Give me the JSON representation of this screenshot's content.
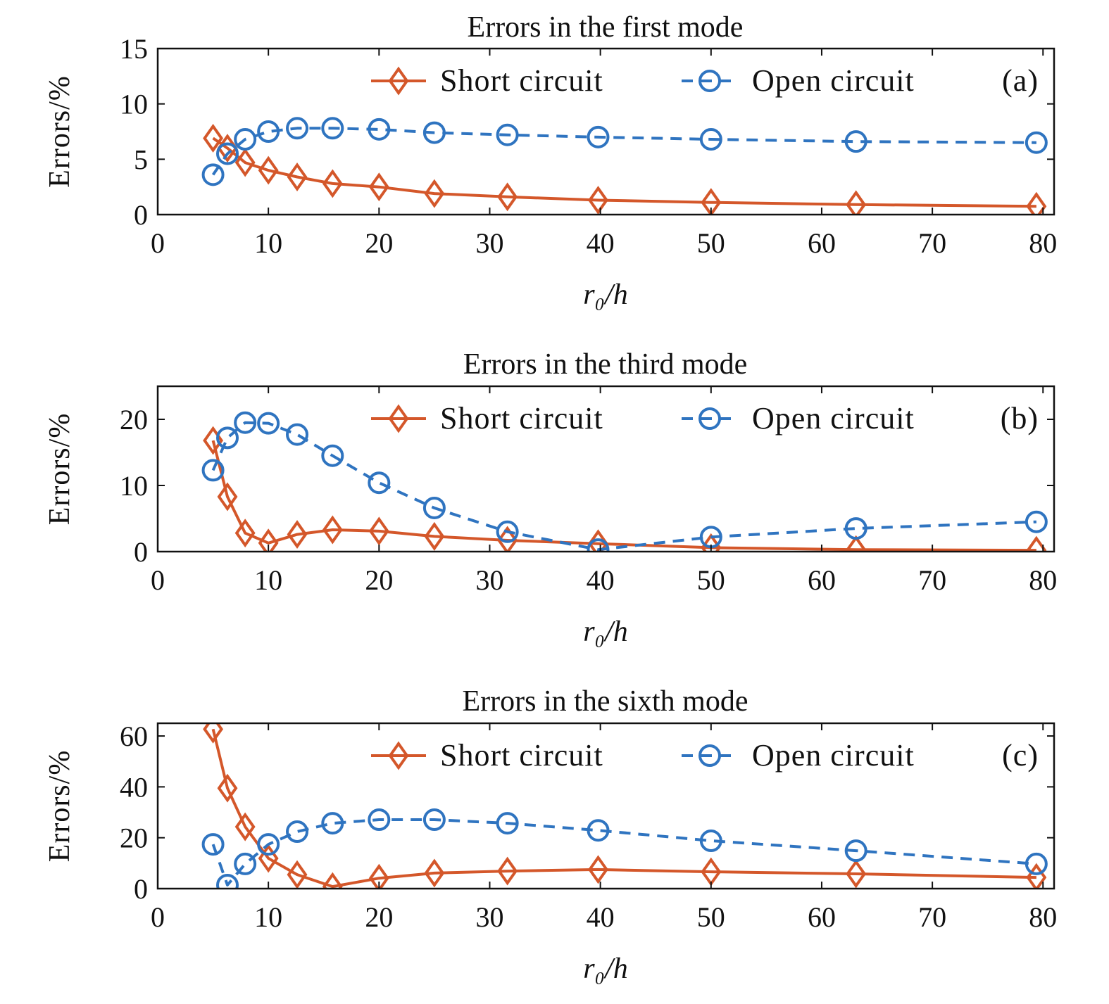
{
  "colors": {
    "short": "#d4572a",
    "open": "#2f74c0"
  },
  "chart_data": [
    {
      "type": "line",
      "title": "Errors in the first mode",
      "panel_label": "(a)",
      "xlabel": "r₀/h",
      "ylabel": "Errors/%",
      "xlim": [
        0,
        81
      ],
      "ylim": [
        0,
        15
      ],
      "xticks": [
        0,
        10,
        20,
        30,
        40,
        50,
        60,
        70,
        80
      ],
      "yticks": [
        0,
        5,
        10,
        15
      ],
      "grid": false,
      "legend_position": "top-right",
      "x": [
        5,
        6.3,
        7.9,
        10,
        12.6,
        15.8,
        20,
        25,
        31.6,
        39.8,
        50,
        63.1,
        79.4
      ],
      "series": [
        {
          "name": "Short circuit",
          "marker": "diamond",
          "style": "solid",
          "values": [
            6.9,
            6.0,
            4.7,
            4.0,
            3.4,
            2.8,
            2.5,
            1.9,
            1.6,
            1.3,
            1.1,
            0.9,
            0.75
          ]
        },
        {
          "name": "Open circuit",
          "marker": "circle",
          "style": "dashed",
          "values": [
            3.6,
            5.5,
            6.8,
            7.5,
            7.8,
            7.8,
            7.7,
            7.4,
            7.2,
            7.0,
            6.8,
            6.6,
            6.5
          ]
        }
      ]
    },
    {
      "type": "line",
      "title": "Errors in the third mode",
      "panel_label": "(b)",
      "xlabel": "r₀/h",
      "ylabel": "Errors/%",
      "xlim": [
        0,
        81
      ],
      "ylim": [
        0,
        25
      ],
      "xticks": [
        0,
        10,
        20,
        30,
        40,
        50,
        60,
        70,
        80
      ],
      "yticks": [
        0,
        10,
        20
      ],
      "grid": false,
      "legend_position": "top-right",
      "x": [
        5,
        6.3,
        7.9,
        10,
        12.6,
        15.8,
        20,
        25,
        31.6,
        39.8,
        50,
        63.1,
        79.4
      ],
      "series": [
        {
          "name": "Short circuit",
          "marker": "diamond",
          "style": "solid",
          "values": [
            16.8,
            8.3,
            2.8,
            1.3,
            2.6,
            3.3,
            3.1,
            2.3,
            1.7,
            1.2,
            0.6,
            0.3,
            0.2
          ]
        },
        {
          "name": "Open circuit",
          "marker": "circle",
          "style": "dashed",
          "values": [
            12.3,
            17.2,
            19.5,
            19.4,
            17.7,
            14.5,
            10.4,
            6.6,
            3.0,
            0.3,
            2.2,
            3.5,
            4.5
          ]
        }
      ]
    },
    {
      "type": "line",
      "title": "Errors in the sixth mode",
      "panel_label": "(c)",
      "xlabel": "r₀/h",
      "ylabel": "Errors/%",
      "xlim": [
        0,
        81
      ],
      "ylim": [
        0,
        65
      ],
      "xticks": [
        0,
        10,
        20,
        30,
        40,
        50,
        60,
        70,
        80
      ],
      "yticks": [
        0,
        20,
        40,
        60
      ],
      "grid": false,
      "legend_position": "top-right",
      "x": [
        5,
        6.3,
        7.9,
        10,
        12.6,
        15.8,
        20,
        25,
        31.6,
        39.8,
        50,
        63.1,
        79.4
      ],
      "series": [
        {
          "name": "Short circuit",
          "marker": "diamond",
          "style": "solid",
          "values": [
            62.7,
            39.5,
            24.3,
            11.9,
            5.5,
            0.8,
            4.1,
            6.1,
            6.9,
            7.5,
            6.6,
            5.8,
            4.4
          ]
        },
        {
          "name": "Open circuit",
          "marker": "circle",
          "style": "dashed",
          "values": [
            17.4,
            1.4,
            9.7,
            17.4,
            22.4,
            25.7,
            27.1,
            27.1,
            25.7,
            22.9,
            18.8,
            14.9,
            9.7
          ]
        }
      ]
    }
  ]
}
